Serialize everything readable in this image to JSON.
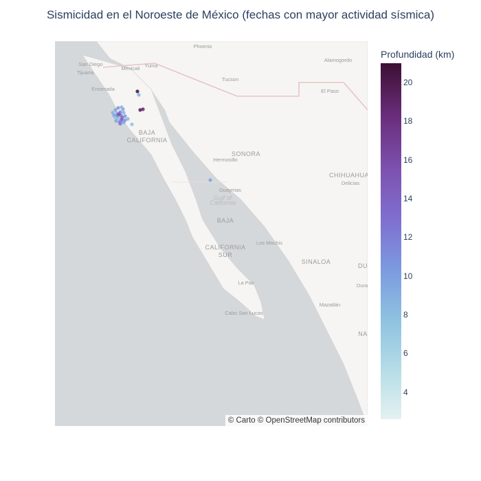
{
  "title": "Sismicidad en el Noroeste de México (fechas con mayor actividad sísmica)",
  "attribution": "© Carto © OpenStreetMap contributors",
  "colorbar": {
    "title": "Profundidad (km)",
    "min": 2.6,
    "max": 21,
    "ticks": [
      "4",
      "6",
      "8",
      "10",
      "12",
      "14",
      "16",
      "18",
      "20"
    ],
    "colors": [
      "#e4f1f1",
      "#b5dce7",
      "#8ec2e0",
      "#7c9ae0",
      "#7f6fd0",
      "#7d52b0",
      "#6a2d7d",
      "#3c1033"
    ]
  },
  "map_labels": [
    {
      "text": "Phoenix",
      "name": "label-phoenix"
    },
    {
      "text": "Alamogordo",
      "name": "label-alamogordo"
    },
    {
      "text": "San Diego",
      "name": "label-san-diego"
    },
    {
      "text": "Tijuana",
      "name": "label-tijuana"
    },
    {
      "text": "Mexicali",
      "name": "label-mexicali"
    },
    {
      "text": "Yuma",
      "name": "label-yuma"
    },
    {
      "text": "Tucson",
      "name": "label-tucson"
    },
    {
      "text": "Ensenada",
      "name": "label-ensenada"
    },
    {
      "text": "El Paso",
      "name": "label-el-paso"
    },
    {
      "text": "BAJA",
      "name": "label-baja-1"
    },
    {
      "text": "CALIFORNIA",
      "name": "label-california-1"
    },
    {
      "text": "SONORA",
      "name": "label-sonora"
    },
    {
      "text": "Hermosillo",
      "name": "label-hermosillo"
    },
    {
      "text": "CHIHUAHUA",
      "name": "label-chihuahua"
    },
    {
      "text": "Delicias",
      "name": "label-delicias"
    },
    {
      "text": "Guaymas",
      "name": "label-guaymas"
    },
    {
      "text": "Gulf of",
      "name": "label-gulf-of"
    },
    {
      "text": "California",
      "name": "label-gulf-california"
    },
    {
      "text": "BAJA",
      "name": "label-baja-2"
    },
    {
      "text": "CALIFORNIA",
      "name": "label-california-2"
    },
    {
      "text": "SUR",
      "name": "label-sur"
    },
    {
      "text": "Los Mochis",
      "name": "label-los-mochis"
    },
    {
      "text": "SINALOA",
      "name": "label-sinaloa"
    },
    {
      "text": "DU",
      "name": "label-durango-1"
    },
    {
      "text": "Dura",
      "name": "label-durango-2"
    },
    {
      "text": "La Paz",
      "name": "label-la-paz"
    },
    {
      "text": "Mazatlán",
      "name": "label-mazatlan"
    },
    {
      "text": "Cabo San Lucas",
      "name": "label-cabo-san-lucas"
    },
    {
      "text": "NA",
      "name": "label-nayarit"
    }
  ],
  "points": [
    {
      "depth": 21
    },
    {
      "depth": 9
    },
    {
      "depth": 20
    },
    {
      "depth": 19
    },
    {
      "depth": 10
    },
    {
      "depth": 11
    },
    {
      "depth": 12
    },
    {
      "depth": 9
    },
    {
      "depth": 10
    },
    {
      "depth": 13
    },
    {
      "depth": 8
    },
    {
      "depth": 14
    },
    {
      "depth": 9
    },
    {
      "depth": 11
    },
    {
      "depth": 10
    },
    {
      "depth": 15
    },
    {
      "depth": 8
    },
    {
      "depth": 12
    },
    {
      "depth": 9
    },
    {
      "depth": 10
    },
    {
      "depth": 16
    },
    {
      "depth": 11
    },
    {
      "depth": 9
    },
    {
      "depth": 10
    },
    {
      "depth": 13
    },
    {
      "depth": 8
    },
    {
      "depth": 10
    },
    {
      "depth": 9
    },
    {
      "depth": 12
    },
    {
      "depth": 10
    }
  ]
}
